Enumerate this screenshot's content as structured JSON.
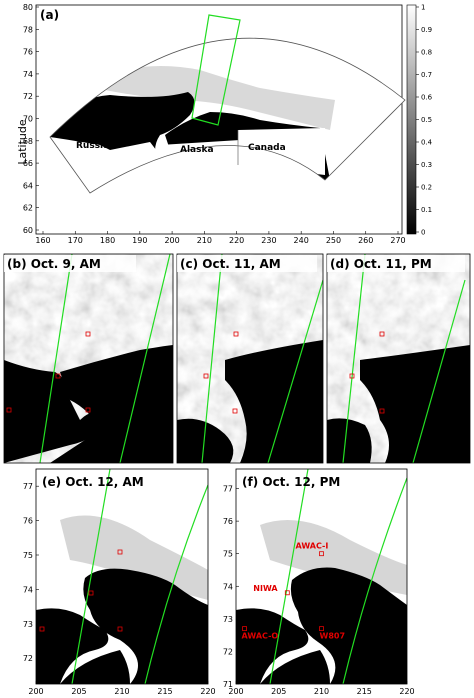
{
  "colors": {
    "track": "#22dd22",
    "station": "#e00000",
    "land": "#000000",
    "ice_high": "#ffffff"
  },
  "panel_a": {
    "label": "(a)",
    "ylabel": "Latitude",
    "xticks": [
      "160",
      "170",
      "180",
      "190",
      "200",
      "210",
      "220",
      "230",
      "240",
      "250",
      "260",
      "270"
    ],
    "yticks": [
      "60",
      "62",
      "64",
      "66",
      "68",
      "70",
      "72",
      "74",
      "76",
      "78",
      "80"
    ],
    "regions": {
      "russia": "Russia",
      "alaska": "Alaska",
      "canada": "Canada"
    },
    "colorbar_ticks": [
      "0",
      "0.1",
      "0.2",
      "0.3",
      "0.4",
      "0.5",
      "0.6",
      "0.7",
      "0.8",
      "0.9",
      "1"
    ],
    "colorbar_range": [
      0,
      1
    ]
  },
  "panels_mid": [
    {
      "label": "(b) Oct. 9, AM"
    },
    {
      "label": "(c) Oct. 11, AM"
    },
    {
      "label": "(d) Oct. 11, PM"
    }
  ],
  "panel_e": {
    "label": "(e) Oct. 12, AM",
    "xticks": [
      "200",
      "205",
      "210",
      "215",
      "220"
    ],
    "yticks": [
      "72",
      "73",
      "74",
      "75",
      "76",
      "77"
    ]
  },
  "panel_f": {
    "label": "(f) Oct. 12, PM",
    "xticks": [
      "200",
      "205",
      "210",
      "215",
      "220"
    ],
    "yticks": [
      "71",
      "72",
      "73",
      "74",
      "75",
      "76",
      "77"
    ],
    "stations": [
      {
        "name": "AWAC-I",
        "lon": 210,
        "lat": 75.0
      },
      {
        "name": "NIWA",
        "lon": 206,
        "lat": 73.8
      },
      {
        "name": "AWAC-O",
        "lon": 201,
        "lat": 72.7
      },
      {
        "name": "W807",
        "lon": 210,
        "lat": 72.7
      }
    ]
  }
}
